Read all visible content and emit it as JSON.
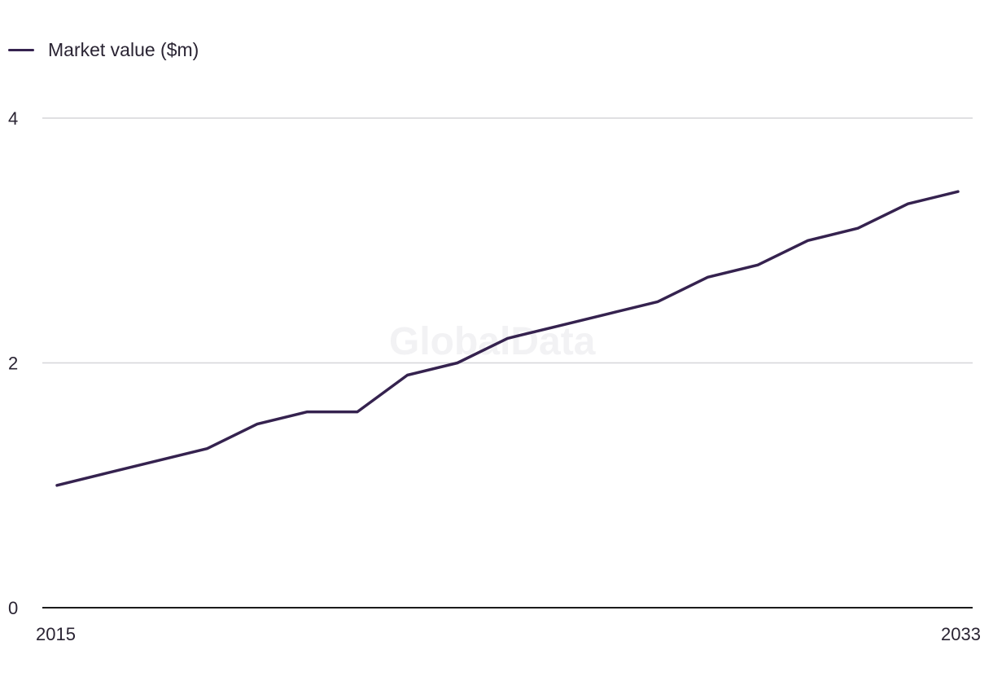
{
  "legend": {
    "label": "Market value ($m)"
  },
  "watermark": "GlobalData",
  "colors": {
    "series": "#35224f",
    "grid": "#d6d6d9",
    "axis": "#1c1c1c"
  },
  "chart_data": {
    "type": "line",
    "title": "",
    "xlabel": "",
    "ylabel": "",
    "x": [
      2015,
      2016,
      2017,
      2018,
      2019,
      2020,
      2021,
      2022,
      2023,
      2024,
      2025,
      2026,
      2027,
      2028,
      2029,
      2030,
      2031,
      2032,
      2033
    ],
    "series": [
      {
        "name": "Market value ($m)",
        "values": [
          1.0,
          1.1,
          1.2,
          1.3,
          1.5,
          1.6,
          1.6,
          1.9,
          2.0,
          2.2,
          2.3,
          2.4,
          2.5,
          2.7,
          2.8,
          3.0,
          3.1,
          3.3,
          3.4
        ]
      }
    ],
    "xlim": [
      2015,
      2033
    ],
    "ylim": [
      0,
      4
    ],
    "yticks": [
      0,
      2,
      4
    ],
    "xtick_labels": [
      "2015",
      "2033"
    ],
    "grid": true,
    "legend_position": "top-left"
  }
}
